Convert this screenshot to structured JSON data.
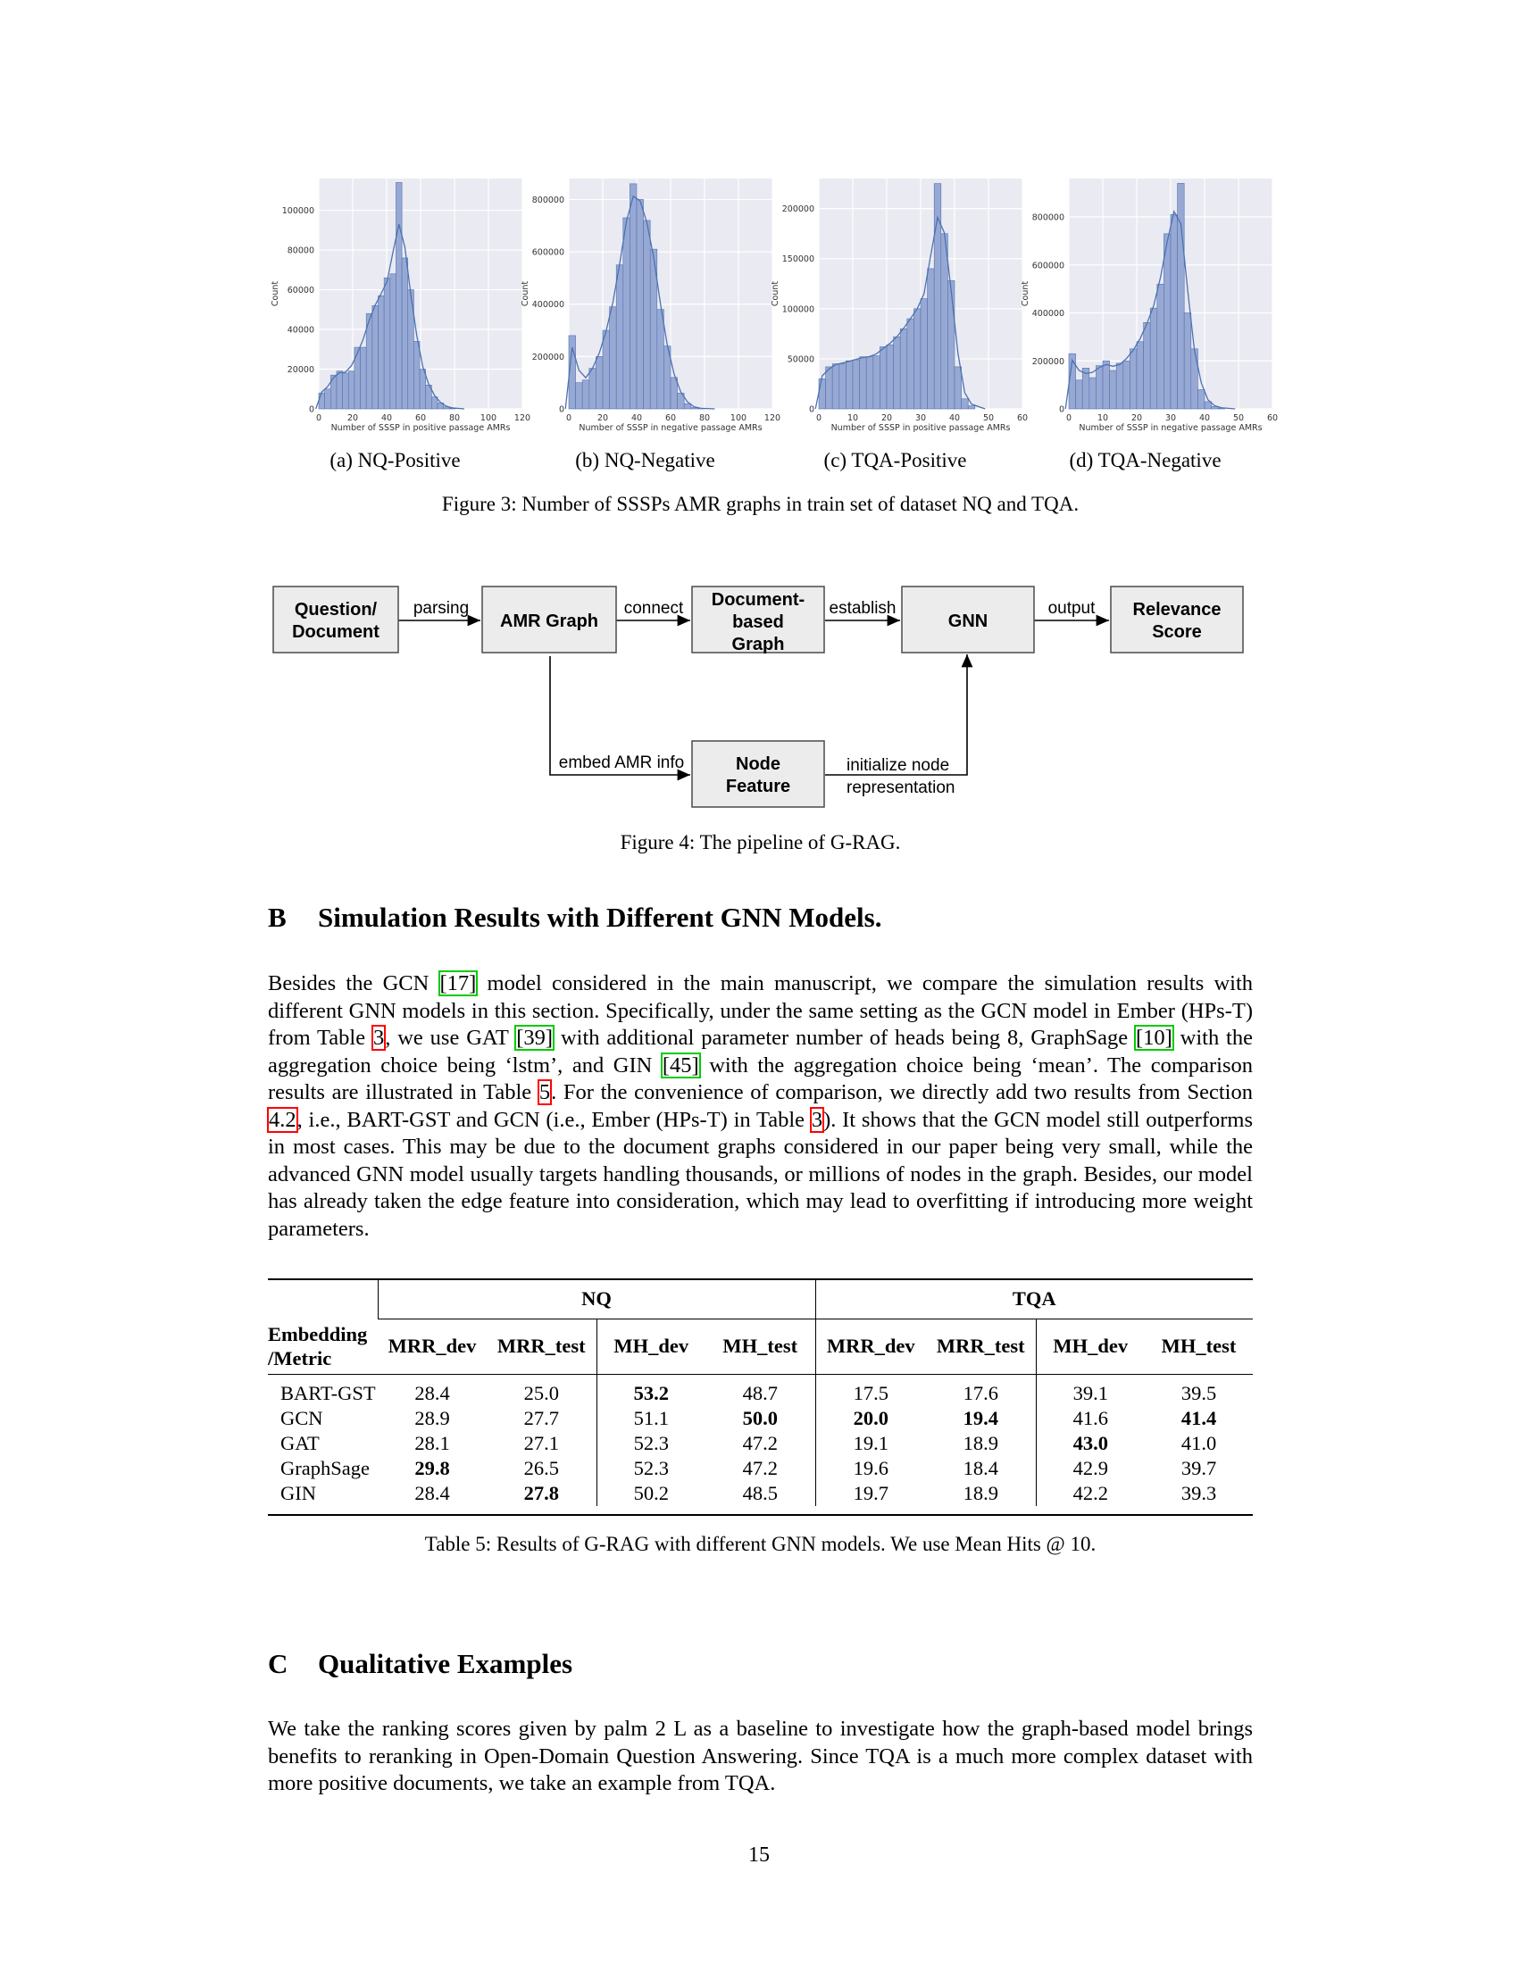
{
  "figure3": {
    "caption": "Figure 3: Number of SSSPs AMR graphs in train set of dataset NQ and TQA.",
    "panels": [
      {
        "subcaption": "(a) NQ-Positive",
        "xlabel": "Number of SSSP in positive passage AMRs",
        "ylabel": "Count",
        "xticks": [
          "0",
          "20",
          "40",
          "60",
          "80",
          "100",
          "120"
        ],
        "yticks": [
          "0",
          "20000",
          "40000",
          "60000",
          "80000",
          "100000"
        ]
      },
      {
        "subcaption": "(b) NQ-Negative",
        "xlabel": "Number of SSSP in negative passage AMRs",
        "ylabel": "Count",
        "xticks": [
          "0",
          "20",
          "40",
          "60",
          "80",
          "100",
          "120"
        ],
        "yticks": [
          "0",
          "200000",
          "400000",
          "600000",
          "800000"
        ]
      },
      {
        "subcaption": "(c) TQA-Positive",
        "xlabel": "Number of SSSP in positive passage AMRs",
        "ylabel": "Count",
        "xticks": [
          "0",
          "10",
          "20",
          "30",
          "40",
          "50",
          "60"
        ],
        "yticks": [
          "0",
          "50000",
          "100000",
          "150000",
          "200000"
        ]
      },
      {
        "subcaption": "(d) TQA-Negative",
        "xlabel": "Number of SSSP in negative passage AMRs",
        "ylabel": "Count",
        "xticks": [
          "0",
          "10",
          "20",
          "30",
          "40",
          "50",
          "60"
        ],
        "yticks": [
          "0",
          "200000",
          "400000",
          "600000",
          "800000"
        ]
      }
    ]
  },
  "chart_data": [
    {
      "type": "bar",
      "title": "",
      "xlabel": "Number of SSSP in positive passage AMRs",
      "ylabel": "Count",
      "xlim": [
        0,
        120
      ],
      "ylim": [
        0,
        116000
      ],
      "bin_width": 3.5,
      "x": [
        1.75,
        5.25,
        8.75,
        12.25,
        15.75,
        19.25,
        22.75,
        26.25,
        29.75,
        33.25,
        36.75,
        40.25,
        43.75,
        47.25,
        50.75,
        54.25,
        57.75,
        61.25,
        64.75,
        68.25,
        71.75,
        75.25,
        78.75
      ],
      "values": [
        8000,
        10000,
        17000,
        19000,
        18000,
        19000,
        31000,
        31000,
        48000,
        52000,
        57000,
        66000,
        68000,
        114000,
        76000,
        60000,
        34000,
        20000,
        12000,
        6000,
        3000,
        1000,
        300
      ]
    },
    {
      "type": "bar",
      "title": "",
      "xlabel": "Number of SSSP in negative passage AMRs",
      "ylabel": "Count",
      "xlim": [
        0,
        120
      ],
      "ylim": [
        0,
        880000
      ],
      "bin_width": 4,
      "x": [
        2,
        6,
        10,
        14,
        18,
        22,
        26,
        30,
        34,
        38,
        42,
        46,
        50,
        54,
        58,
        62,
        66,
        70,
        74,
        78
      ],
      "values": [
        280000,
        100000,
        110000,
        155000,
        200000,
        300000,
        390000,
        550000,
        730000,
        860000,
        800000,
        720000,
        610000,
        380000,
        240000,
        120000,
        60000,
        20000,
        5000,
        1000
      ]
    },
    {
      "type": "bar",
      "title": "",
      "xlabel": "Number of SSSP in positive passage AMRs",
      "ylabel": "Count",
      "xlim": [
        0,
        60
      ],
      "ylim": [
        0,
        230000
      ],
      "bin_width": 2,
      "x": [
        1,
        3,
        5,
        7,
        9,
        11,
        13,
        15,
        17,
        19,
        21,
        23,
        25,
        27,
        29,
        31,
        33,
        35,
        37,
        39,
        41,
        43,
        45
      ],
      "values": [
        30000,
        42000,
        45000,
        45000,
        48000,
        49000,
        52000,
        52000,
        53000,
        62000,
        64000,
        72000,
        80000,
        90000,
        100000,
        110000,
        140000,
        225000,
        175000,
        128000,
        42000,
        10000,
        3000
      ]
    },
    {
      "type": "bar",
      "title": "",
      "xlabel": "Number of SSSP in negative passage AMRs",
      "ylabel": "Count",
      "xlim": [
        0,
        60
      ],
      "ylim": [
        0,
        960000
      ],
      "bin_width": 2,
      "x": [
        1,
        3,
        5,
        7,
        9,
        11,
        13,
        15,
        17,
        19,
        21,
        23,
        25,
        27,
        29,
        31,
        33,
        35,
        37,
        39,
        41,
        43,
        45
      ],
      "values": [
        230000,
        120000,
        170000,
        130000,
        180000,
        200000,
        160000,
        190000,
        200000,
        250000,
        280000,
        360000,
        420000,
        520000,
        730000,
        810000,
        940000,
        400000,
        250000,
        80000,
        30000,
        10000,
        3000
      ]
    }
  ],
  "figure4": {
    "caption": "Figure 4: The pipeline of G-RAG.",
    "boxes": {
      "question_doc": [
        "Question/",
        "Document"
      ],
      "amr_graph": [
        "AMR Graph"
      ],
      "doc_graph": [
        "Document-",
        "based",
        "Graph"
      ],
      "gnn": [
        "GNN"
      ],
      "relevance": [
        "Relevance",
        "Score"
      ],
      "node_feature": [
        "Node",
        "Feature"
      ]
    },
    "edges": {
      "parsing": "parsing",
      "connect": "connect",
      "establish": "establish",
      "output": "output",
      "embed": "embed AMR info",
      "init": [
        "initialize node",
        "representation"
      ]
    }
  },
  "sectionB": {
    "number": "B",
    "title": "Simulation Results with Different GNN Models.",
    "paragraph": [
      {
        "t": "Besides the GCN "
      },
      {
        "t": "[17]",
        "ref": "g"
      },
      {
        "t": " model considered in the main manuscript, we compare the simulation results with different GNN models in this section. Specifically, under the same setting as the GCN model in Ember (HPs-T) from Table "
      },
      {
        "t": "3",
        "ref": "r"
      },
      {
        "t": ", we use GAT "
      },
      {
        "t": "[39]",
        "ref": "g"
      },
      {
        "t": " with additional parameter number of heads being 8, GraphSage "
      },
      {
        "t": "[10]",
        "ref": "g"
      },
      {
        "t": " with the aggregation choice being ‘lstm’, and GIN "
      },
      {
        "t": "[45]",
        "ref": "g"
      },
      {
        "t": " with the aggregation choice being ‘mean’. The comparison results are illustrated in Table "
      },
      {
        "t": "5",
        "ref": "r"
      },
      {
        "t": ". For the convenience of comparison, we directly add two results from Section "
      },
      {
        "t": "4.2",
        "ref": "r"
      },
      {
        "t": ", i.e., BART-GST and GCN (i.e., Ember (HPs-T) in Table "
      },
      {
        "t": "3",
        "ref": "r"
      },
      {
        "t": "). It shows that the GCN model still outperforms in most cases. This may be due to the document graphs considered in our paper being very small, while the advanced GNN model usually targets handling thousands, or millions of nodes in the graph. Besides, our model has already taken the edge feature into consideration, which may lead to overfitting if introducing more weight parameters."
      }
    ]
  },
  "table5": {
    "groups": [
      "NQ",
      "TQA"
    ],
    "corner": [
      "Embedding",
      "/Metric"
    ],
    "columns": [
      "MRR_dev",
      "MRR_test",
      "MH_dev",
      "MH_test",
      "MRR_dev",
      "MRR_test",
      "MH_dev",
      "MH_test"
    ],
    "rows": [
      {
        "name": "BART-GST",
        "values": [
          "28.4",
          "25.0",
          "53.2",
          "48.7",
          "17.5",
          "17.6",
          "39.1",
          "39.5"
        ],
        "bold": [
          2
        ]
      },
      {
        "name": "GCN",
        "values": [
          "28.9",
          "27.7",
          "51.1",
          "50.0",
          "20.0",
          "19.4",
          "41.6",
          "41.4"
        ],
        "bold": [
          3,
          4,
          5,
          7
        ]
      },
      {
        "name": "GAT",
        "values": [
          "28.1",
          "27.1",
          "52.3",
          "47.2",
          "19.1",
          "18.9",
          "43.0",
          "41.0"
        ],
        "bold": [
          6
        ]
      },
      {
        "name": "GraphSage",
        "values": [
          "29.8",
          "26.5",
          "52.3",
          "47.2",
          "19.6",
          "18.4",
          "42.9",
          "39.7"
        ],
        "bold": [
          0
        ]
      },
      {
        "name": "GIN",
        "values": [
          "28.4",
          "27.8",
          "50.2",
          "48.5",
          "19.7",
          "18.9",
          "42.2",
          "39.3"
        ],
        "bold": [
          1
        ]
      }
    ],
    "caption": "Table 5: Results of G-RAG with different GNN models. We use Mean Hits @ 10."
  },
  "sectionC": {
    "number": "C",
    "title": "Qualitative Examples",
    "paragraph": "We take the ranking scores given by palm 2 L as a baseline to investigate how the graph-based model brings benefits to reranking in Open-Domain Question Answering. Since TQA is a much more complex dataset with more positive documents, we take an example from TQA."
  },
  "page_number": "15",
  "colors": {
    "plot_bg": "#eaeaf2",
    "bar_fill": "#97a9d3",
    "bar_edge": "#5470b4",
    "kde_line": "#4c72b0",
    "box_fill": "#ececec",
    "ref_green": "#00cc00",
    "ref_red": "#ff0000"
  }
}
